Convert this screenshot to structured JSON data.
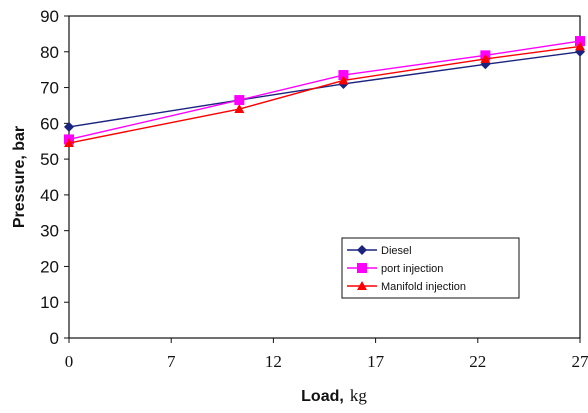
{
  "chart_data": {
    "type": "line",
    "xlabel_bold": "Load,",
    "xlabel_unit": "kg",
    "ylabel": "Pressure, bar",
    "x_categories": [
      "0",
      "7",
      "12",
      "17",
      "22",
      "27"
    ],
    "x_values": [
      0,
      9,
      14.5,
      22,
      27
    ],
    "xlim": [
      0,
      27
    ],
    "ylim": [
      0,
      90
    ],
    "yticks": [
      0,
      10,
      20,
      30,
      40,
      50,
      60,
      70,
      80,
      90
    ],
    "grid": false,
    "legend_position": "lower-right",
    "series": [
      {
        "name": "Diesel",
        "color": "#1a237e",
        "marker": "diamond",
        "values": [
          59,
          66.5,
          71,
          76.5,
          80
        ]
      },
      {
        "name": "port injection",
        "color": "#ff00ff",
        "marker": "square",
        "values": [
          55.5,
          66.5,
          73.5,
          79,
          83
        ]
      },
      {
        "name": "Manifold injection",
        "color": "#ff0000",
        "marker": "triangle",
        "values": [
          54.5,
          64,
          72,
          78,
          81.5
        ]
      }
    ]
  }
}
